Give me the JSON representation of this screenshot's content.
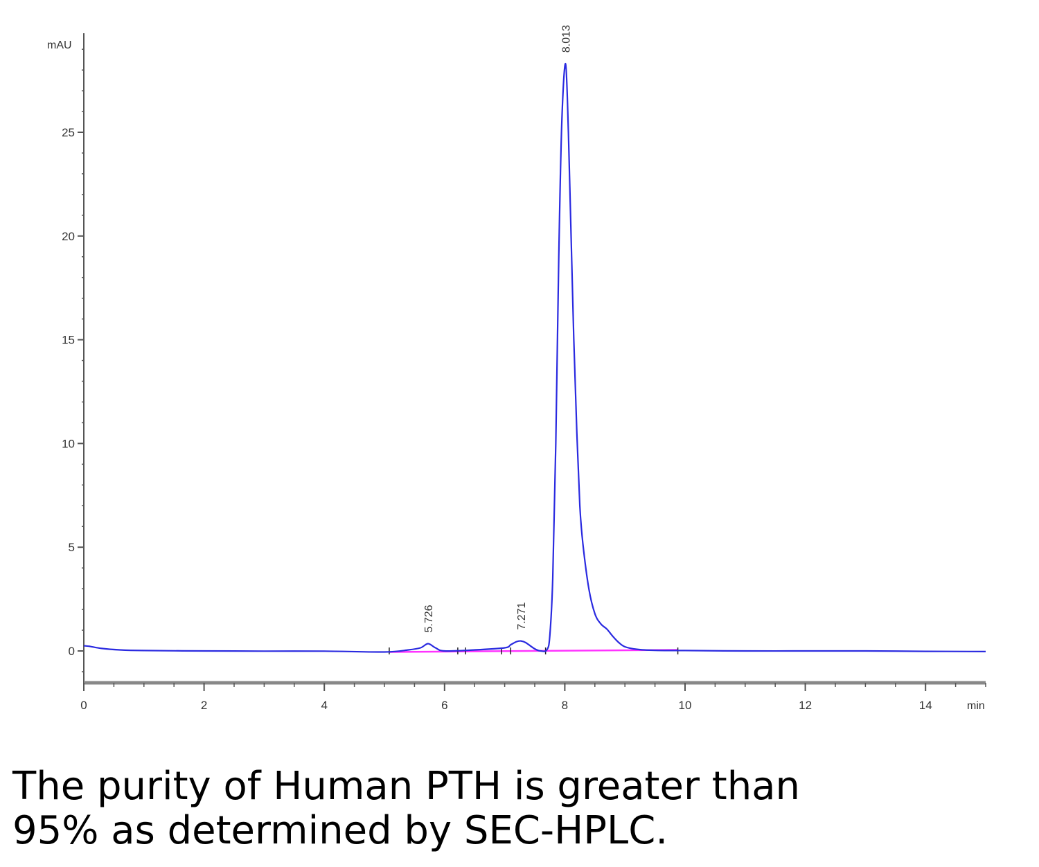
{
  "chart_data": {
    "type": "line",
    "title": "",
    "xlabel": "min",
    "ylabel": "mAU",
    "xlim": [
      0,
      15
    ],
    "ylim": [
      -1.5,
      29.5
    ],
    "x_ticks": [
      0,
      2,
      4,
      6,
      8,
      10,
      12,
      14
    ],
    "y_ticks": [
      0,
      5,
      10,
      15,
      20,
      25
    ],
    "x_tick_labels": [
      "0",
      "2",
      "4",
      "6",
      "8",
      "10",
      "12",
      "14"
    ],
    "y_tick_labels": [
      "0",
      "5",
      "10",
      "15",
      "20",
      "25"
    ],
    "grid": false,
    "series": [
      {
        "color": "#2a2ae0",
        "x": [
          0,
          0.1,
          0.3,
          0.6,
          1.0,
          2.0,
          3.0,
          4.0,
          5.0,
          5.4,
          5.6,
          5.726,
          5.85,
          6.0,
          6.5,
          7.0,
          7.1,
          7.2,
          7.271,
          7.35,
          7.5,
          7.6,
          7.7,
          7.75,
          7.8,
          7.85,
          7.9,
          7.95,
          8.013,
          8.06,
          8.1,
          8.15,
          8.2,
          8.25,
          8.3,
          8.4,
          8.5,
          8.6,
          8.7,
          8.8,
          8.9,
          9.0,
          9.2,
          9.5,
          10.0,
          11.0,
          12.0,
          13.0,
          14.0,
          15.0
        ],
        "y": [
          0.25,
          0.22,
          0.12,
          0.05,
          0.02,
          0.0,
          -0.01,
          -0.01,
          -0.05,
          0.05,
          0.15,
          0.35,
          0.15,
          0.0,
          0.05,
          0.15,
          0.3,
          0.45,
          0.48,
          0.4,
          0.1,
          0.0,
          0.05,
          0.7,
          3.5,
          10.0,
          19.0,
          25.5,
          28.3,
          25.0,
          20.5,
          15.0,
          10.5,
          7.0,
          5.2,
          3.0,
          1.8,
          1.3,
          1.05,
          0.7,
          0.4,
          0.2,
          0.08,
          0.03,
          0.02,
          0.0,
          0.0,
          0.0,
          -0.02,
          -0.03
        ]
      },
      {
        "color": "#ff33ff",
        "x": [
          5.08,
          9.88
        ],
        "y": [
          -0.05,
          0.05
        ]
      }
    ],
    "annotations": [
      {
        "x": 5.726,
        "y": 0.35,
        "text": "5.726"
      },
      {
        "x": 7.271,
        "y": 0.48,
        "text": "7.271"
      },
      {
        "x": 8.013,
        "y": 28.3,
        "text": "8.013"
      }
    ],
    "integration_marks_x": [
      5.08,
      6.22,
      6.35,
      6.95,
      7.1,
      7.68,
      9.88
    ]
  },
  "caption": {
    "line1": "The purity of Human PTH is greater than",
    "line2": "95% as determined by SEC-HPLC."
  }
}
